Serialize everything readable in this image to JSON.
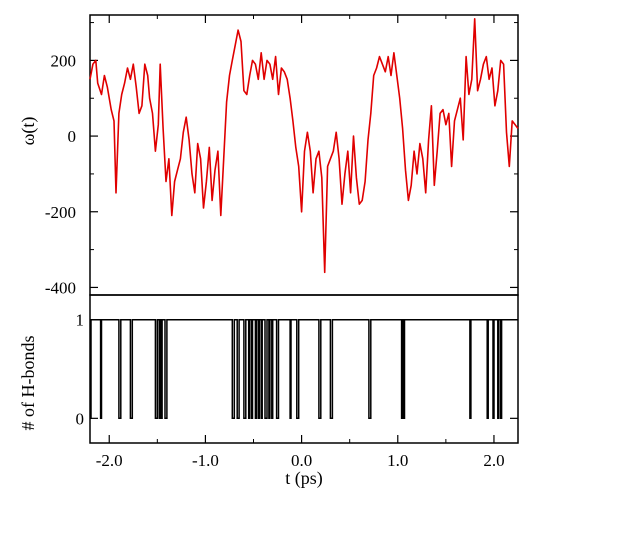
{
  "chart_data": [
    {
      "type": "line",
      "panel": "top",
      "ylabel": "ω(t)",
      "xlim": [
        -2.2,
        2.25
      ],
      "ylim": [
        -420,
        320
      ],
      "yticks": [
        200,
        0,
        -200,
        -400
      ],
      "ytick_labels": [
        "200",
        "0",
        "-200",
        "-400"
      ],
      "grid": false,
      "series": [
        {
          "color": "#e00000",
          "x": [
            -2.2,
            -2.17,
            -2.14,
            -2.12,
            -2.08,
            -2.05,
            -2.02,
            -1.98,
            -1.95,
            -1.93,
            -1.9,
            -1.87,
            -1.84,
            -1.81,
            -1.78,
            -1.75,
            -1.72,
            -1.69,
            -1.66,
            -1.63,
            -1.6,
            -1.58,
            -1.55,
            -1.52,
            -1.49,
            -1.47,
            -1.44,
            -1.41,
            -1.38,
            -1.35,
            -1.32,
            -1.29,
            -1.26,
            -1.23,
            -1.2,
            -1.17,
            -1.14,
            -1.11,
            -1.08,
            -1.05,
            -1.02,
            -0.99,
            -0.96,
            -0.93,
            -0.9,
            -0.87,
            -0.84,
            -0.81,
            -0.78,
            -0.75,
            -0.72,
            -0.69,
            -0.66,
            -0.63,
            -0.6,
            -0.57,
            -0.54,
            -0.51,
            -0.48,
            -0.45,
            -0.42,
            -0.39,
            -0.36,
            -0.33,
            -0.3,
            -0.27,
            -0.24,
            -0.21,
            -0.18,
            -0.15,
            -0.12,
            -0.09,
            -0.06,
            -0.03,
            0.0,
            0.03,
            0.06,
            0.09,
            0.12,
            0.15,
            0.18,
            0.21,
            0.24,
            0.27,
            0.3,
            0.33,
            0.36,
            0.39,
            0.42,
            0.45,
            0.48,
            0.51,
            0.54,
            0.57,
            0.6,
            0.63,
            0.66,
            0.69,
            0.72,
            0.75,
            0.78,
            0.81,
            0.84,
            0.87,
            0.9,
            0.93,
            0.96,
            0.99,
            1.02,
            1.05,
            1.08,
            1.11,
            1.14,
            1.17,
            1.2,
            1.23,
            1.26,
            1.29,
            1.32,
            1.35,
            1.38,
            1.41,
            1.44,
            1.47,
            1.5,
            1.53,
            1.56,
            1.59,
            1.62,
            1.65,
            1.68,
            1.71,
            1.74,
            1.77,
            1.8,
            1.83,
            1.86,
            1.89,
            1.92,
            1.95,
            1.98,
            2.01,
            2.04,
            2.07,
            2.1,
            2.13,
            2.16,
            2.19,
            2.22,
            2.25
          ],
          "y": [
            150,
            190,
            200,
            140,
            110,
            160,
            130,
            70,
            40,
            -150,
            60,
            110,
            140,
            180,
            150,
            190,
            130,
            60,
            80,
            190,
            160,
            100,
            60,
            -40,
            30,
            190,
            20,
            -120,
            -60,
            -210,
            -120,
            -90,
            -60,
            10,
            50,
            -10,
            -100,
            -150,
            -20,
            -60,
            -190,
            -120,
            -30,
            -170,
            -90,
            -40,
            -210,
            -60,
            90,
            160,
            200,
            240,
            280,
            250,
            120,
            110,
            160,
            200,
            190,
            150,
            220,
            150,
            200,
            190,
            150,
            210,
            110,
            180,
            170,
            150,
            100,
            40,
            -30,
            -80,
            -200,
            -40,
            10,
            -40,
            -150,
            -60,
            -40,
            -110,
            -360,
            -80,
            -60,
            -40,
            10,
            -60,
            -180,
            -100,
            -40,
            -150,
            0,
            -110,
            -180,
            -170,
            -120,
            -10,
            60,
            160,
            180,
            210,
            190,
            170,
            210,
            160,
            220,
            160,
            100,
            20,
            -90,
            -170,
            -130,
            -40,
            -100,
            -20,
            -60,
            -150,
            -10,
            80,
            -130,
            -40,
            60,
            70,
            30,
            60,
            -80,
            40,
            70,
            100,
            -10,
            210,
            110,
            150,
            310,
            120,
            150,
            190,
            210,
            150,
            180,
            80,
            120,
            200,
            190,
            10,
            -80,
            40,
            30,
            20
          ]
        }
      ]
    },
    {
      "type": "line",
      "panel": "bottom",
      "step": true,
      "xlabel": "t (ps)",
      "ylabel": "# of H-bonds",
      "xlim": [
        -2.2,
        2.25
      ],
      "ylim": [
        -0.25,
        1.25
      ],
      "xticks": [
        -2.0,
        -1.0,
        0.0,
        1.0,
        2.0
      ],
      "xtick_labels": [
        "-2.0",
        "-1.0",
        "0.0",
        "1.0",
        "2.0"
      ],
      "yticks": [
        1,
        0
      ],
      "ytick_labels": [
        "1",
        "0"
      ],
      "grid": false,
      "series": [
        {
          "color": "#000000",
          "x": [
            -2.2,
            -2.19,
            -2.09,
            -2.08,
            -1.9,
            -1.88,
            -1.78,
            -1.76,
            -1.52,
            -1.5,
            -1.48,
            -1.47,
            -1.46,
            -1.45,
            -1.42,
            -1.4,
            -0.72,
            -0.7,
            -0.67,
            -0.65,
            -0.6,
            -0.58,
            -0.55,
            -0.54,
            -0.52,
            -0.51,
            -0.48,
            -0.47,
            -0.45,
            -0.44,
            -0.42,
            -0.41,
            -0.38,
            -0.36,
            -0.34,
            -0.33,
            -0.31,
            -0.3,
            -0.26,
            -0.24,
            -0.12,
            -0.11,
            -0.05,
            -0.03,
            0.18,
            0.2,
            0.3,
            0.32,
            0.7,
            0.72,
            1.04,
            1.05,
            1.06,
            1.07,
            1.75,
            1.76,
            1.93,
            1.94,
            1.99,
            2.0,
            2.04,
            2.05,
            2.07,
            2.08,
            2.25
          ],
          "y": [
            0,
            1,
            0,
            1,
            0,
            1,
            0,
            1,
            0,
            1,
            0,
            1,
            0,
            1,
            0,
            1,
            0,
            1,
            0,
            1,
            0,
            1,
            0,
            1,
            0,
            1,
            0,
            1,
            0,
            1,
            0,
            1,
            0,
            1,
            0,
            1,
            0,
            1,
            0,
            1,
            0,
            1,
            0,
            1,
            0,
            1,
            0,
            1,
            0,
            1,
            0,
            1,
            0,
            1,
            0,
            1,
            0,
            1,
            0,
            1,
            0,
            1,
            0,
            1,
            1
          ]
        }
      ]
    }
  ]
}
